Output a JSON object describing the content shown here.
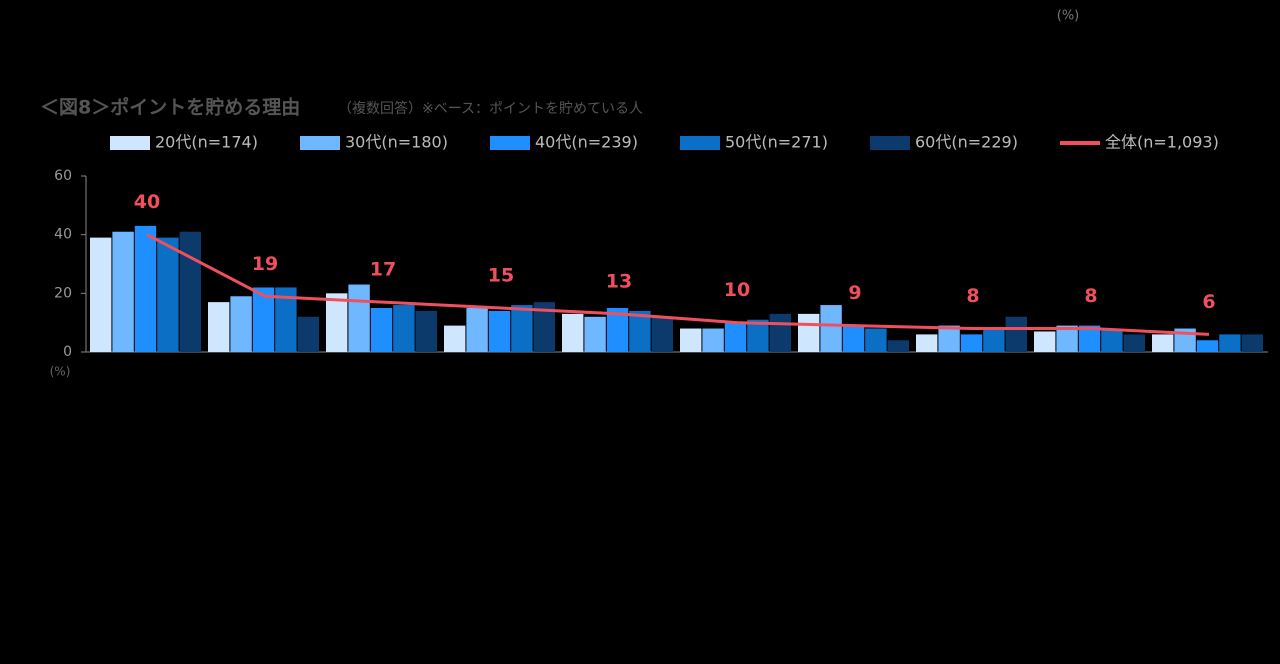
{
  "chart_data": {
    "type": "bar",
    "corner_note": "(%)",
    "title": "＜図8＞ポイントを貯める理由",
    "subtitle": "（複数回答）※ベース：ポイントを貯めている人",
    "y_unit": "(%)",
    "categories": [
      null,
      null,
      null,
      null,
      null,
      null,
      null,
      null,
      null,
      null
    ],
    "series": [
      {
        "name": "20代(n=174)",
        "color": "#cfe6ff",
        "values": [
          39,
          17,
          20,
          9,
          13,
          8,
          13,
          6,
          7,
          6
        ]
      },
      {
        "name": "30代(n=180)",
        "color": "#6fb8ff",
        "values": [
          41,
          19,
          23,
          15,
          12,
          8,
          16,
          9,
          9,
          8
        ]
      },
      {
        "name": "40代(n=239)",
        "color": "#1f8fff",
        "values": [
          43,
          22,
          15,
          14,
          15,
          10,
          9,
          6,
          9,
          4
        ]
      },
      {
        "name": "50代(n=271)",
        "color": "#0b6fc6",
        "values": [
          39,
          22,
          16,
          16,
          14,
          11,
          8,
          8,
          8,
          6
        ]
      },
      {
        "name": "60代(n=229)",
        "color": "#0c3a6c",
        "values": [
          41,
          12,
          14,
          17,
          12,
          13,
          4,
          12,
          6,
          6
        ]
      },
      {
        "name": "全体(n=1,093)",
        "color": "#f0505e",
        "type": "line",
        "values": [
          40,
          19,
          17,
          15,
          13,
          10,
          9,
          8,
          8,
          6
        ]
      }
    ],
    "ylim": [
      0,
      60
    ],
    "yticks": [
      0,
      20,
      40,
      60
    ],
    "grid": false
  }
}
